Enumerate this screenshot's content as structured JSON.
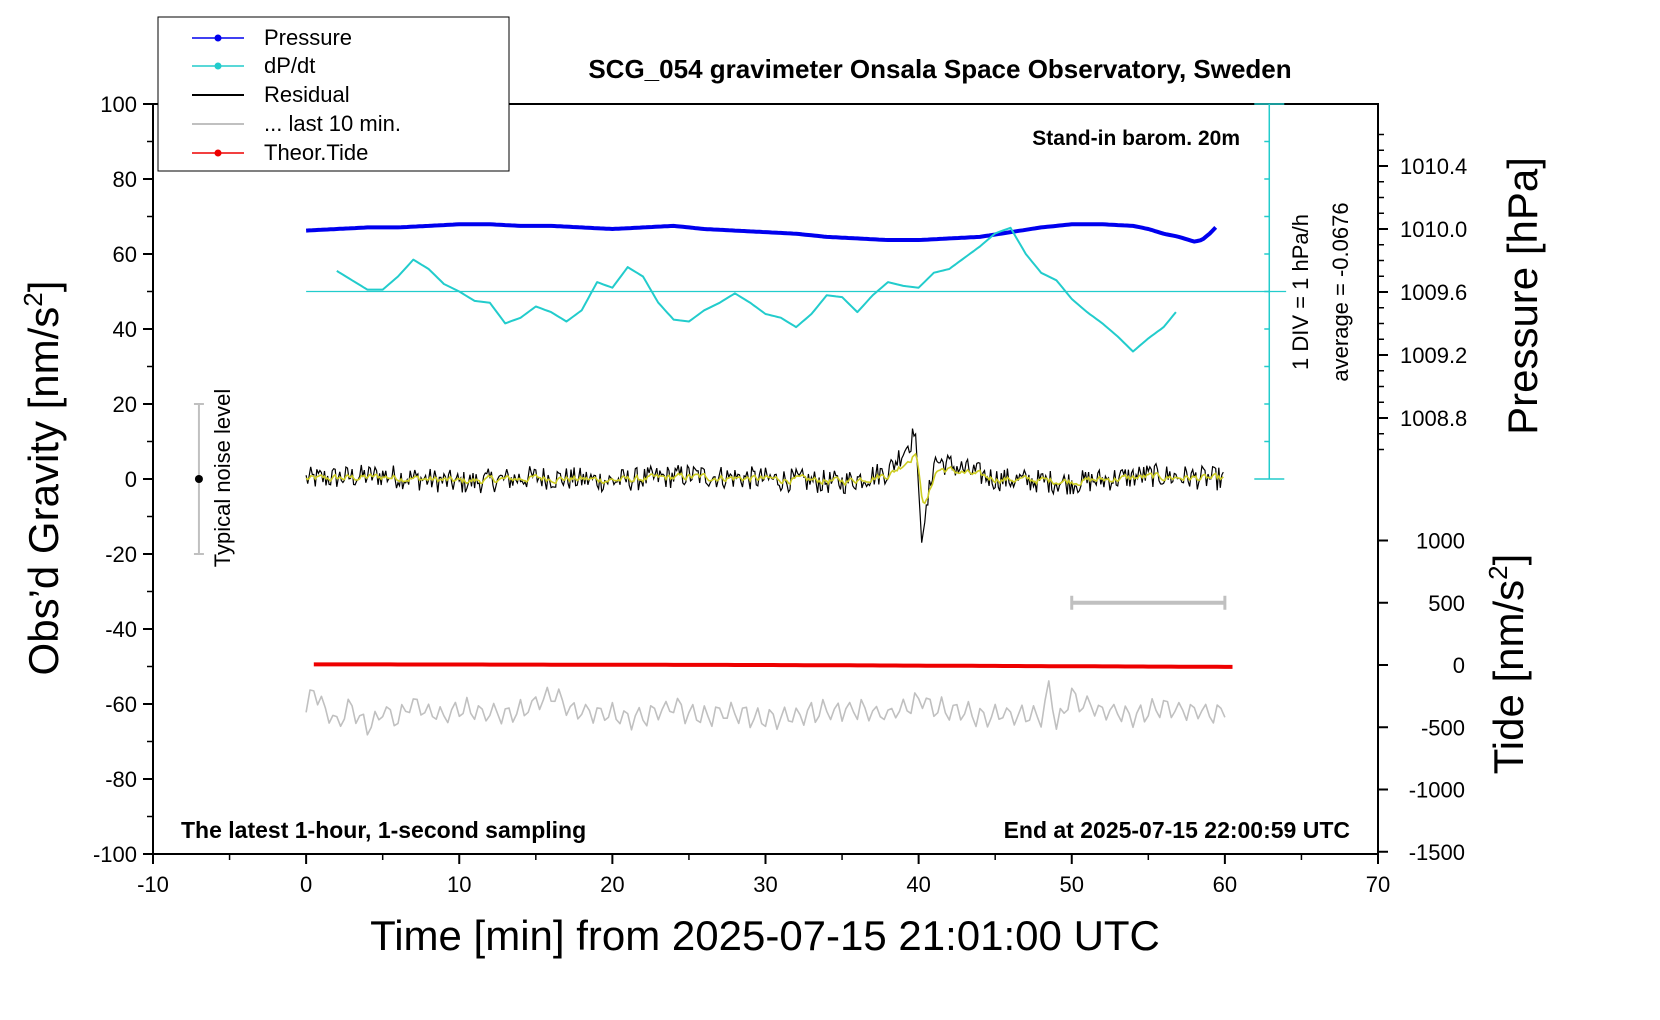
{
  "chart_data": {
    "type": "line",
    "title": "SCG_054 gravimeter Onsala Space Observatory, Sweden",
    "xlabel": "Time [min] from 2025-07-15 21:01:00 UTC",
    "ylabel": "Obs’d Gravity [nm/s²]",
    "ylabel_main": "Obs’d Gravity [nm/s",
    "ylabel_sup": "2",
    "ylabel_end": "]",
    "y2label": "Pressure [hPa]",
    "y3label_main": "Tide [nm/s",
    "y3label_sup": "2",
    "y3label_end": "]",
    "xlim": [
      -10,
      70
    ],
    "ylim": [
      -100,
      100
    ],
    "xticks": [
      "-10",
      "0",
      "10",
      "20",
      "30",
      "40",
      "50",
      "60",
      "70"
    ],
    "yticks": [
      "-100",
      "-80",
      "-60",
      "-40",
      "-20",
      "0",
      "20",
      "40",
      "60",
      "80",
      "100"
    ],
    "pressure_ticks": [
      "1008.8",
      "1009.2",
      "1009.6",
      "1010.0",
      "1010.4"
    ],
    "tide_ticks": [
      "-1500",
      "-1000",
      "-500",
      "0",
      "500",
      "1000"
    ],
    "grid": false,
    "legend_position": "top-left",
    "legend": [
      "Pressure",
      "dP/dt",
      "Residual",
      "... last 10 min.",
      "Theor.Tide"
    ],
    "annotations": {
      "stand_in": "Stand-in barom. 20m",
      "div_label": "1 DIV = 1 hPa/h",
      "average_label": "average = -0.0676",
      "noise_label": "Typical noise level",
      "bottom_left": "The latest 1-hour, 1-second sampling",
      "bottom_right": "End at 2025-07-15 22:00:59 UTC"
    },
    "series": [
      {
        "name": "Pressure",
        "color": "#0000ee",
        "units": "hPa",
        "x": [
          0,
          2,
          4,
          6,
          8,
          10,
          12,
          14,
          16,
          18,
          20,
          22,
          24,
          26,
          28,
          30,
          32,
          34,
          36,
          38,
          40,
          42,
          44,
          46,
          48,
          50,
          52,
          54,
          55,
          56,
          57,
          58,
          58.5,
          59,
          59.5
        ],
        "values": [
          1009.99,
          1010.0,
          1010.01,
          1010.01,
          1010.02,
          1010.03,
          1010.03,
          1010.02,
          1010.02,
          1010.01,
          1010.0,
          1010.01,
          1010.02,
          1010.0,
          1009.99,
          1009.98,
          1009.97,
          1009.95,
          1009.94,
          1009.93,
          1009.93,
          1009.94,
          1009.95,
          1009.98,
          1010.01,
          1010.03,
          1010.03,
          1010.02,
          1010.0,
          1009.97,
          1009.95,
          1009.92,
          1009.93,
          1009.97,
          1010.02
        ]
      },
      {
        "name": "dP/dt",
        "color": "#22cccc",
        "units": "nm/s² plot scale",
        "x": [
          2,
          3,
          4,
          5,
          6,
          7,
          8,
          9,
          10,
          11,
          12,
          13,
          14,
          15,
          16,
          17,
          18,
          19,
          20,
          21,
          22,
          23,
          24,
          25,
          26,
          27,
          28,
          29,
          30,
          31,
          32,
          33,
          34,
          35,
          36,
          37,
          38,
          39,
          40,
          41,
          42,
          43,
          44,
          45,
          46,
          47,
          48,
          49,
          50,
          51,
          52,
          53,
          54,
          55,
          56,
          57
        ],
        "values": [
          55.5,
          53,
          50.5,
          50.5,
          54,
          58.5,
          56,
          52,
          50,
          47.5,
          47,
          41.5,
          43,
          46,
          44.5,
          42,
          45,
          52.5,
          51,
          56.5,
          54,
          47,
          42.5,
          42,
          45,
          47,
          49.5,
          47,
          44,
          43,
          40.5,
          44,
          49,
          48.5,
          44.5,
          49,
          52.5,
          51.5,
          51,
          55,
          56,
          59,
          62,
          65.5,
          67,
          60,
          55,
          53,
          48,
          44.5,
          41.5,
          38,
          34,
          37.5,
          40.5,
          45.5
        ]
      },
      {
        "name": "Residual",
        "color": "#000000",
        "units": "nm/s²",
        "x": [
          0,
          5,
          10,
          15,
          20,
          25,
          30,
          35,
          38,
          39.8,
          40.2,
          41,
          45,
          50,
          55,
          60
        ],
        "values": [
          0,
          1,
          -1,
          0.5,
          -0.5,
          1,
          0,
          -1,
          2,
          12,
          -17,
          5,
          0,
          -1,
          1,
          0
        ]
      },
      {
        "name": "... last 10 min.",
        "color": "#c0c0c0",
        "units": "nm/s² plot scale",
        "x": [
          0,
          0.5,
          1,
          2,
          3,
          4,
          5,
          6,
          7,
          8,
          9,
          10,
          12,
          14,
          16,
          18,
          20,
          22,
          24,
          26,
          28,
          30,
          32,
          34,
          36,
          38,
          40,
          42,
          44,
          46,
          48,
          48.5,
          49,
          50,
          52,
          54,
          56,
          58,
          60
        ],
        "values": [
          -63,
          -55,
          -61,
          -65,
          -61,
          -67,
          -62,
          -64,
          -60,
          -62,
          -63,
          -61,
          -63,
          -62,
          -58,
          -62,
          -63,
          -64,
          -61,
          -63,
          -62,
          -64,
          -63,
          -62,
          -61,
          -63,
          -59,
          -62,
          -63,
          -62,
          -64,
          -55,
          -65,
          -58,
          -62,
          -63,
          -61,
          -62,
          -62
        ]
      },
      {
        "name": "Theor.Tide",
        "color": "#ee0000",
        "units": "nm/s²",
        "x": [
          0,
          10,
          20,
          30,
          40,
          50,
          60
        ],
        "values": [
          5,
          4,
          2,
          0,
          -5,
          -10,
          -15
        ]
      }
    ]
  }
}
